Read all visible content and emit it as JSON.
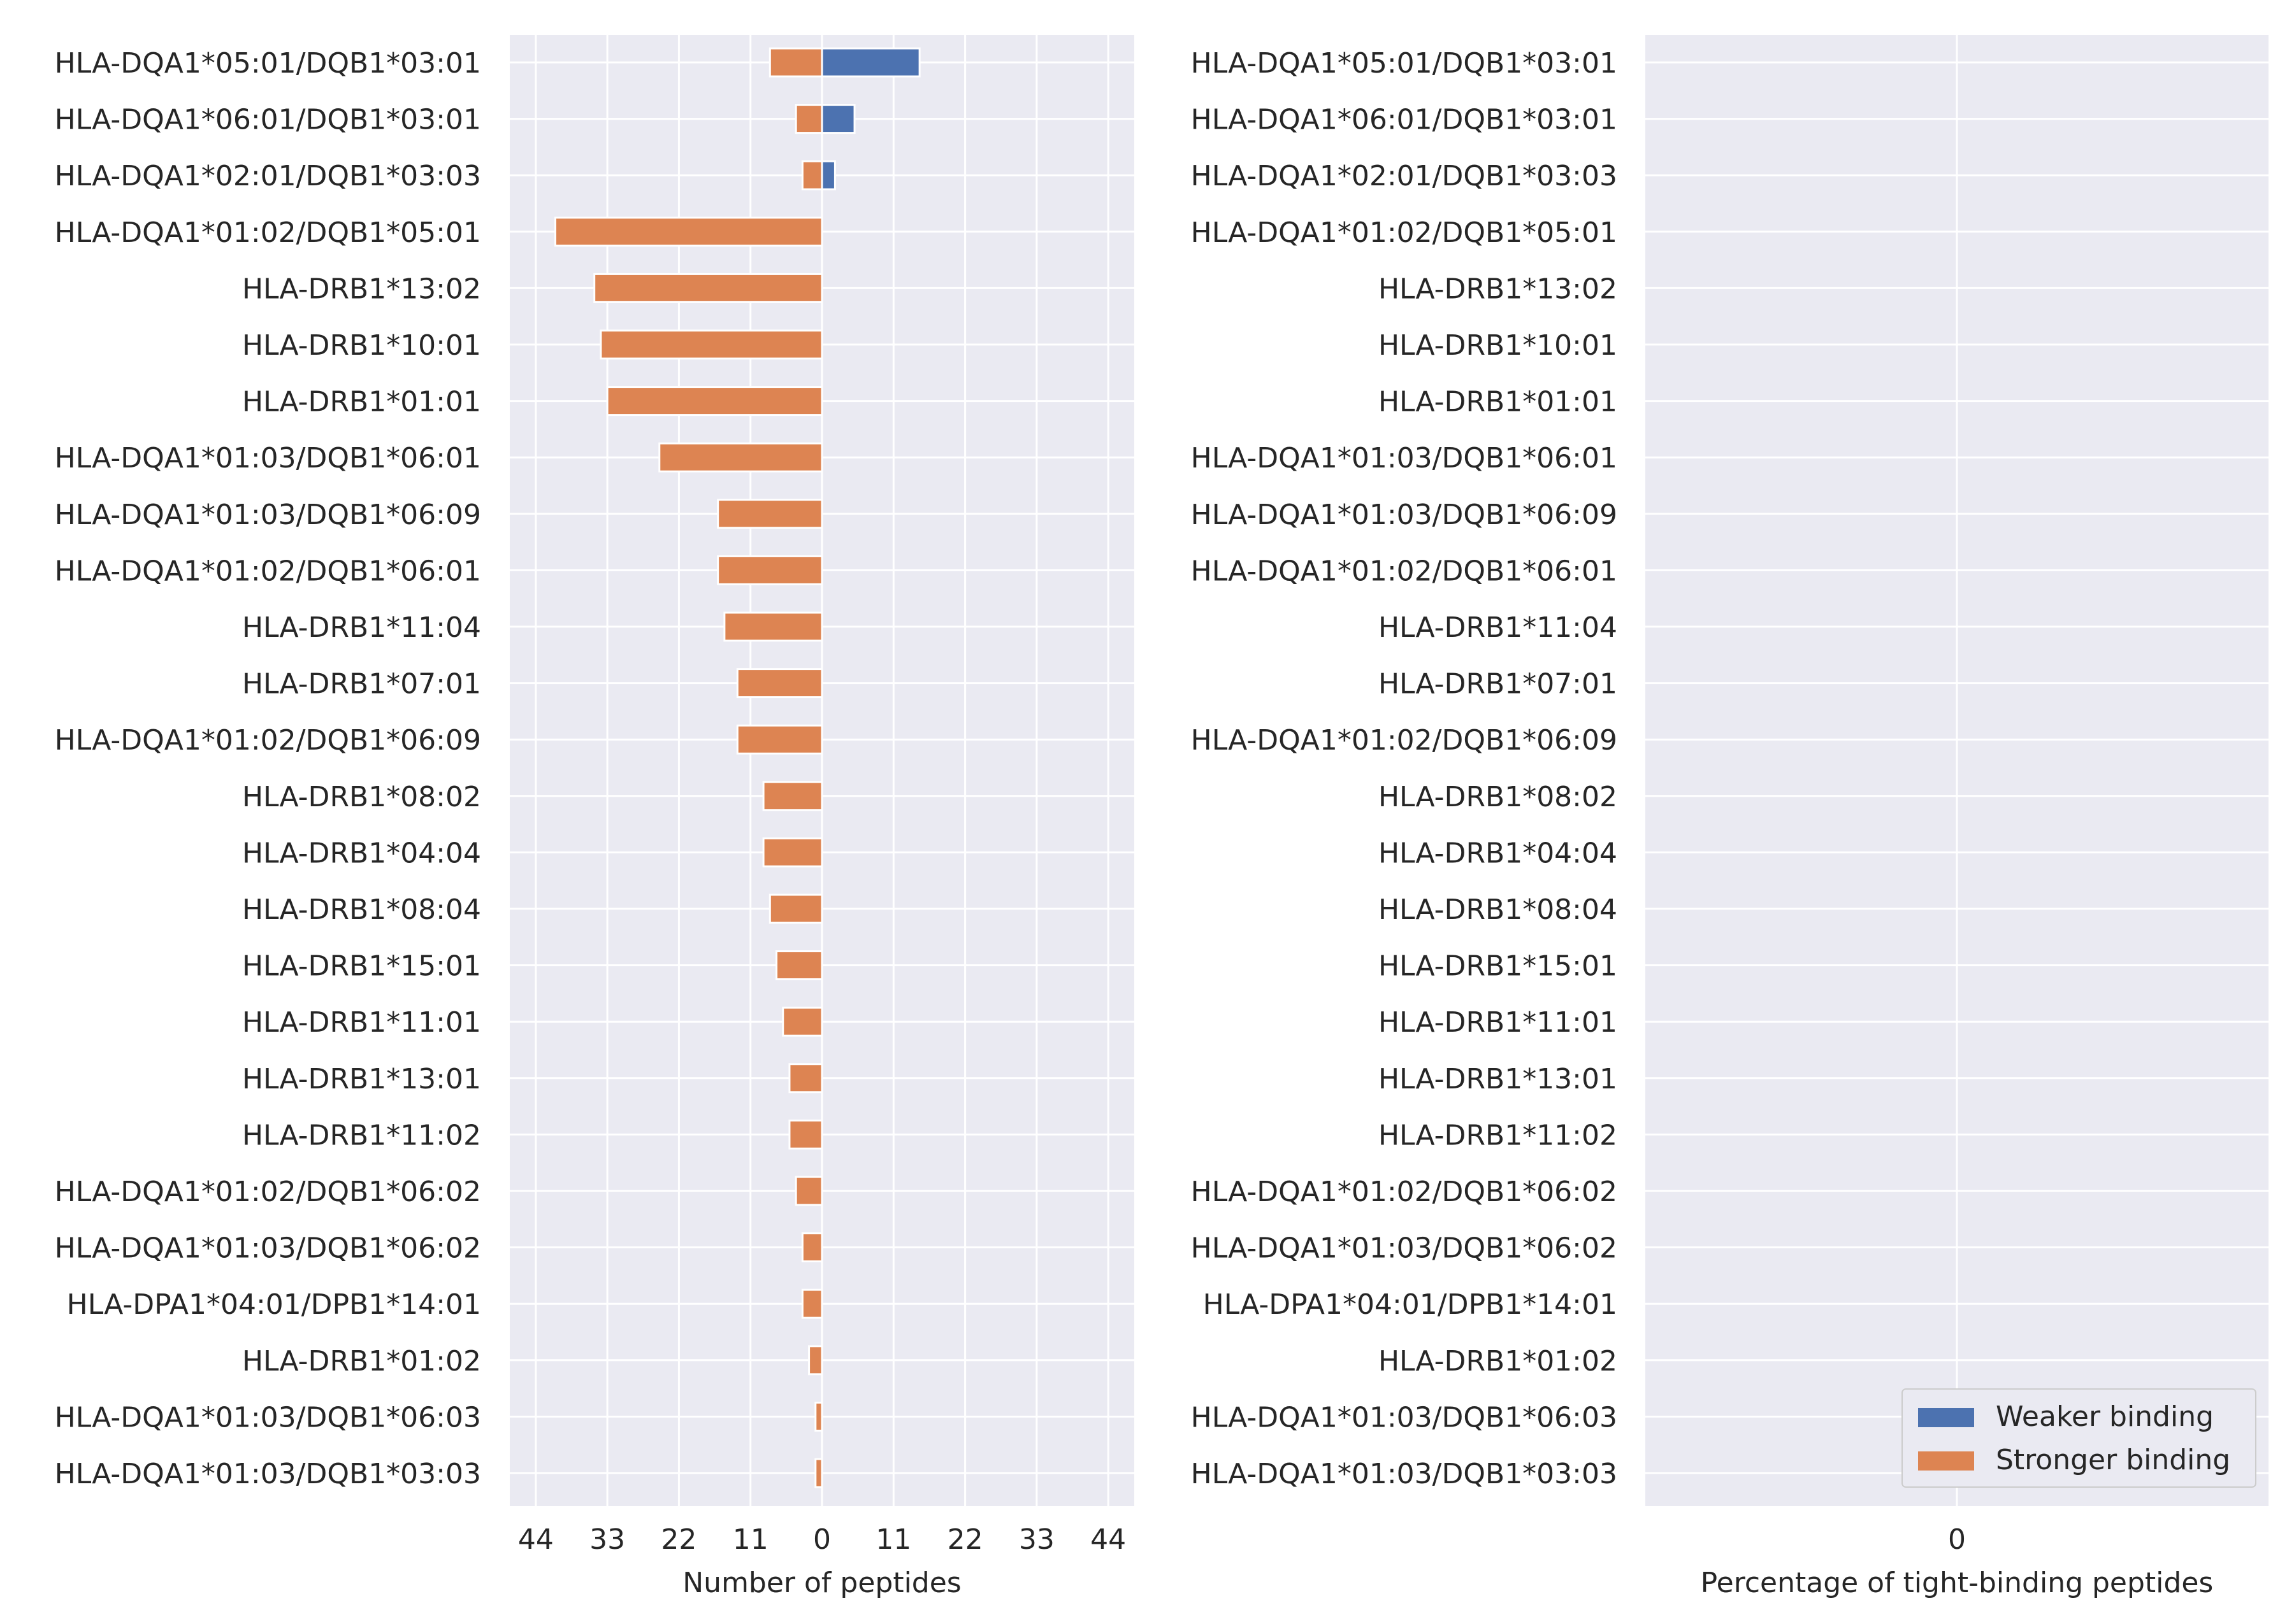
{
  "chart_data": [
    {
      "type": "bar",
      "orientation": "horizontal",
      "stacked": true,
      "xlabel": "Number of peptides",
      "xlim": [
        -48,
        48
      ],
      "xticks": [
        -44,
        -33,
        -22,
        -11,
        0,
        11,
        22,
        33,
        44
      ],
      "xtick_labels": [
        "44",
        "33",
        "22",
        "11",
        "0",
        "11",
        "22",
        "33",
        "44"
      ],
      "grid": true,
      "categories": [
        "HLA-DQA1*05:01/DQB1*03:01",
        "HLA-DQA1*06:01/DQB1*03:01",
        "HLA-DQA1*02:01/DQB1*03:03",
        "HLA-DQA1*01:02/DQB1*05:01",
        "HLA-DRB1*13:02",
        "HLA-DRB1*10:01",
        "HLA-DRB1*01:01",
        "HLA-DQA1*01:03/DQB1*06:01",
        "HLA-DQA1*01:03/DQB1*06:09",
        "HLA-DQA1*01:02/DQB1*06:01",
        "HLA-DRB1*11:04",
        "HLA-DRB1*07:01",
        "HLA-DQA1*01:02/DQB1*06:09",
        "HLA-DRB1*08:02",
        "HLA-DRB1*04:04",
        "HLA-DRB1*08:04",
        "HLA-DRB1*15:01",
        "HLA-DRB1*11:01",
        "HLA-DRB1*13:01",
        "HLA-DRB1*11:02",
        "HLA-DQA1*01:02/DQB1*06:02",
        "HLA-DQA1*01:03/DQB1*06:02",
        "HLA-DPA1*04:01/DPB1*14:01",
        "HLA-DRB1*01:02",
        "HLA-DQA1*01:03/DQB1*06:03",
        "HLA-DQA1*01:03/DQB1*03:03"
      ],
      "series": [
        {
          "name": "Weaker binding",
          "color": "#4c72b0",
          "values": [
            15,
            5,
            2,
            0,
            0,
            0,
            0,
            0,
            0,
            0,
            0,
            0,
            0,
            0,
            0,
            0,
            0,
            0,
            0,
            0,
            0,
            0,
            0,
            0,
            0,
            0
          ]
        },
        {
          "name": "Stronger binding",
          "color": "#dd8452",
          "values": [
            -8,
            -4,
            -3,
            -41,
            -35,
            -34,
            -33,
            -25,
            -16,
            -16,
            -15,
            -13,
            -13,
            -9,
            -9,
            -8,
            -7,
            -6,
            -5,
            -5,
            -4,
            -3,
            -3,
            -2,
            -1,
            -1
          ]
        }
      ]
    },
    {
      "type": "bar",
      "orientation": "horizontal",
      "xlabel": "Percentage of tight-binding peptides",
      "xticks": [
        0
      ],
      "xtick_labels": [
        "0"
      ],
      "grid": true,
      "categories": [
        "HLA-DQA1*05:01/DQB1*03:01",
        "HLA-DQA1*06:01/DQB1*03:01",
        "HLA-DQA1*02:01/DQB1*03:03",
        "HLA-DQA1*01:02/DQB1*05:01",
        "HLA-DRB1*13:02",
        "HLA-DRB1*10:01",
        "HLA-DRB1*01:01",
        "HLA-DQA1*01:03/DQB1*06:01",
        "HLA-DQA1*01:03/DQB1*06:09",
        "HLA-DQA1*01:02/DQB1*06:01",
        "HLA-DRB1*11:04",
        "HLA-DRB1*07:01",
        "HLA-DQA1*01:02/DQB1*06:09",
        "HLA-DRB1*08:02",
        "HLA-DRB1*04:04",
        "HLA-DRB1*08:04",
        "HLA-DRB1*15:01",
        "HLA-DRB1*11:01",
        "HLA-DRB1*13:01",
        "HLA-DRB1*11:02",
        "HLA-DQA1*01:02/DQB1*06:02",
        "HLA-DQA1*01:03/DQB1*06:02",
        "HLA-DPA1*04:01/DPB1*14:01",
        "HLA-DRB1*01:02",
        "HLA-DQA1*01:03/DQB1*06:03",
        "HLA-DQA1*01:03/DQB1*03:03"
      ],
      "legend": {
        "position": "lower-right",
        "entries": [
          {
            "label": "Weaker binding",
            "color": "#4c72b0"
          },
          {
            "label": "Stronger binding",
            "color": "#dd8452"
          }
        ]
      }
    }
  ],
  "style": {
    "panel_bg": "#eaeaf2",
    "grid_color": "#ffffff",
    "text_color": "#262626"
  }
}
